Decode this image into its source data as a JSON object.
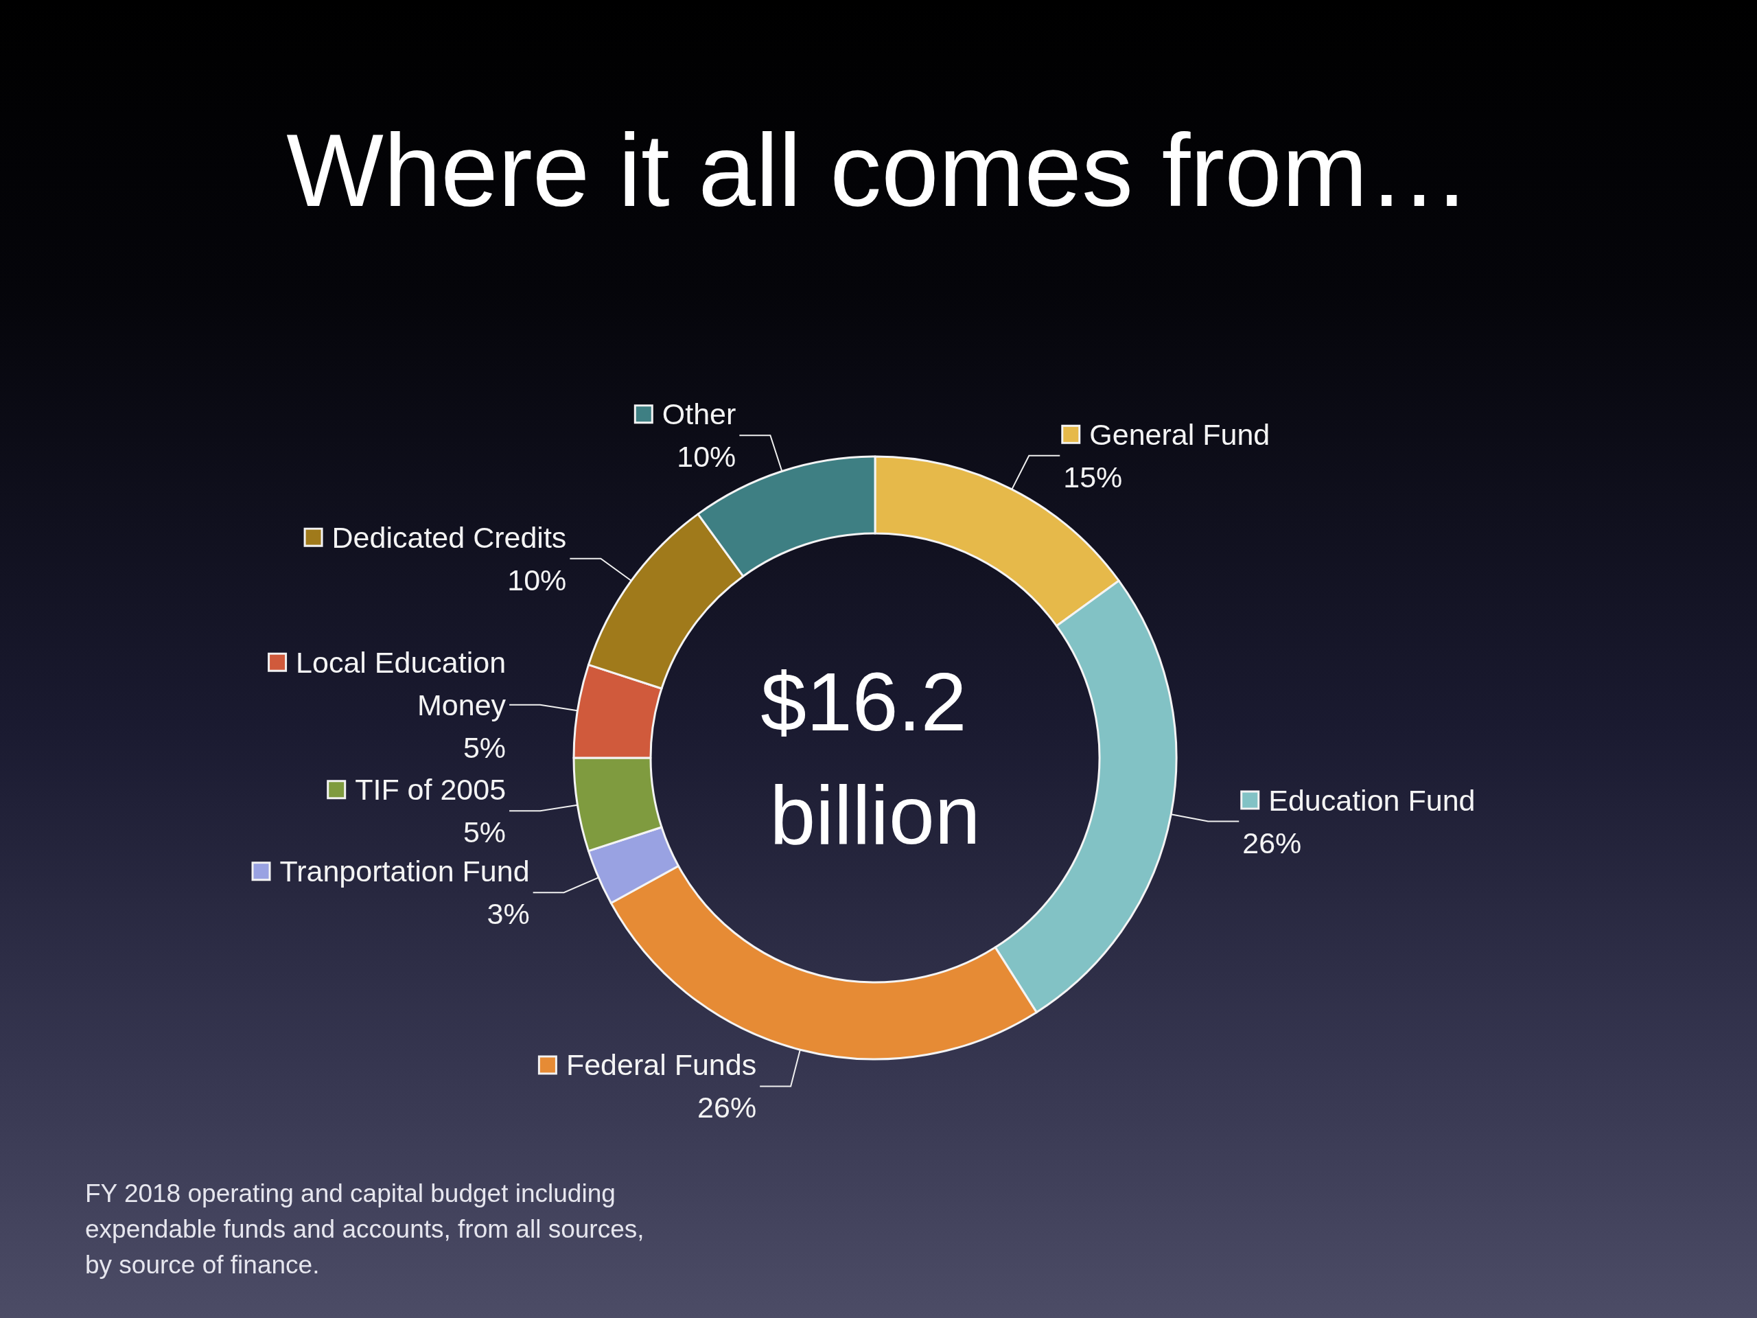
{
  "chart_data": {
    "type": "donut",
    "title": "Where it all comes from…",
    "categories": [
      "General Fund",
      "Education Fund",
      "Federal Funds",
      "Tranportation Fund",
      "TIF of 2005",
      "Local Education Money",
      "Dedicated Credits",
      "Other"
    ],
    "values": [
      15,
      26,
      26,
      3,
      5,
      5,
      10,
      10
    ],
    "value_labels": [
      "15%",
      "26%",
      "26%",
      "3%",
      "5%",
      "5%",
      "10%",
      "10%"
    ],
    "colors": [
      "#e6b94a",
      "#82c2c5",
      "#e68b35",
      "#99a2e2",
      "#7f9b3f",
      "#d05a3c",
      "#a07a1b",
      "#3e7f83"
    ],
    "legend": "left",
    "annotations": [
      "$16.2 billion",
      "FY 2018 operating and capital budget including expendable funds and accounts, from all sources, by source of finance."
    ]
  }
}
